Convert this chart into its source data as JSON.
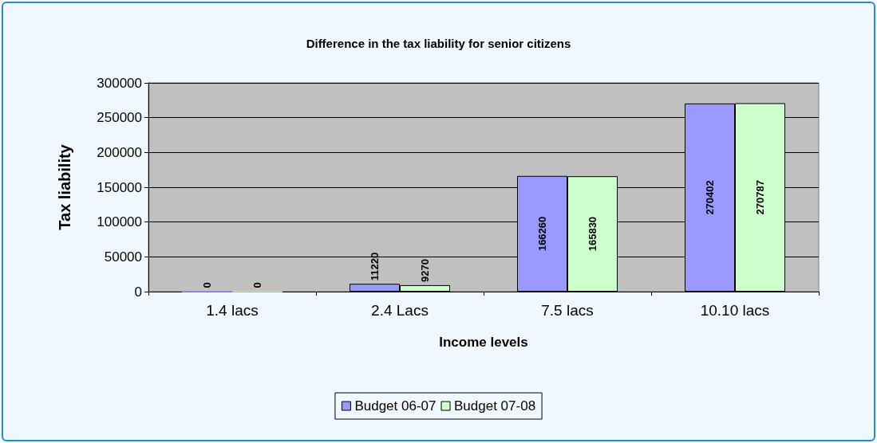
{
  "chart_data": {
    "type": "bar",
    "title": "Difference in the tax liability for senior citizens",
    "xlabel": "Income levels",
    "ylabel": "Tax liability",
    "categories": [
      "1.4 lacs",
      "2.4 Lacs",
      "7.5 lacs",
      "10.10 lacs"
    ],
    "series": [
      {
        "name": "Budget 06-07",
        "color": "#9999ff",
        "values": [
          0,
          11220,
          166260,
          270402
        ]
      },
      {
        "name": "Budget 07-08",
        "color": "#ccffcc",
        "values": [
          0,
          9270,
          165830,
          270787
        ]
      }
    ],
    "ylim": [
      0,
      300000
    ],
    "yticks": [
      0,
      50000,
      100000,
      150000,
      200000,
      250000,
      300000
    ],
    "grid": "y",
    "legend": "bottom",
    "data_labels": true
  }
}
